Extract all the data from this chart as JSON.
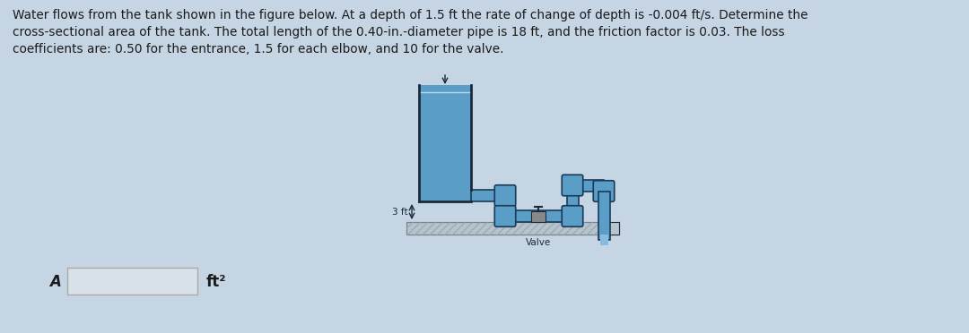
{
  "background_color": "#c5d5e3",
  "text_color": "#1a1a1a",
  "main_text_line1": "Water flows from the tank shown in the figure below. At a depth of 1.5 ft the rate of change of depth is -0.004 ft/s. Determine the",
  "main_text_line2": "cross-sectional area of the tank. The total length of the 0.40-in.-diameter pipe is 18 ft, and the friction factor is 0.03. The loss",
  "main_text_line3": "coefficients are: 0.50 for the entrance, 1.5 for each elbow, and 10 for the valve.",
  "answer_label": "A =",
  "answer_units": "ft²",
  "tank_water_color": "#5a9ec8",
  "tank_wall_color": "#2a5a7a",
  "pipe_color": "#5a9ec8",
  "pipe_edge_color": "#1a3a5a",
  "elbow_color": "#5a9ec8",
  "ground_color": "#b8c4cc",
  "ground_hatch_color": "#9aacb8",
  "valve_body_color": "#888888",
  "outlet_water_color": "#88bbdd",
  "label_3ft": "3 ft",
  "label_valve": "Valve",
  "outline_color": "#1a2a3a",
  "answer_box_color": "#d8e0e8",
  "answer_box_edge": "#aaaaaa"
}
